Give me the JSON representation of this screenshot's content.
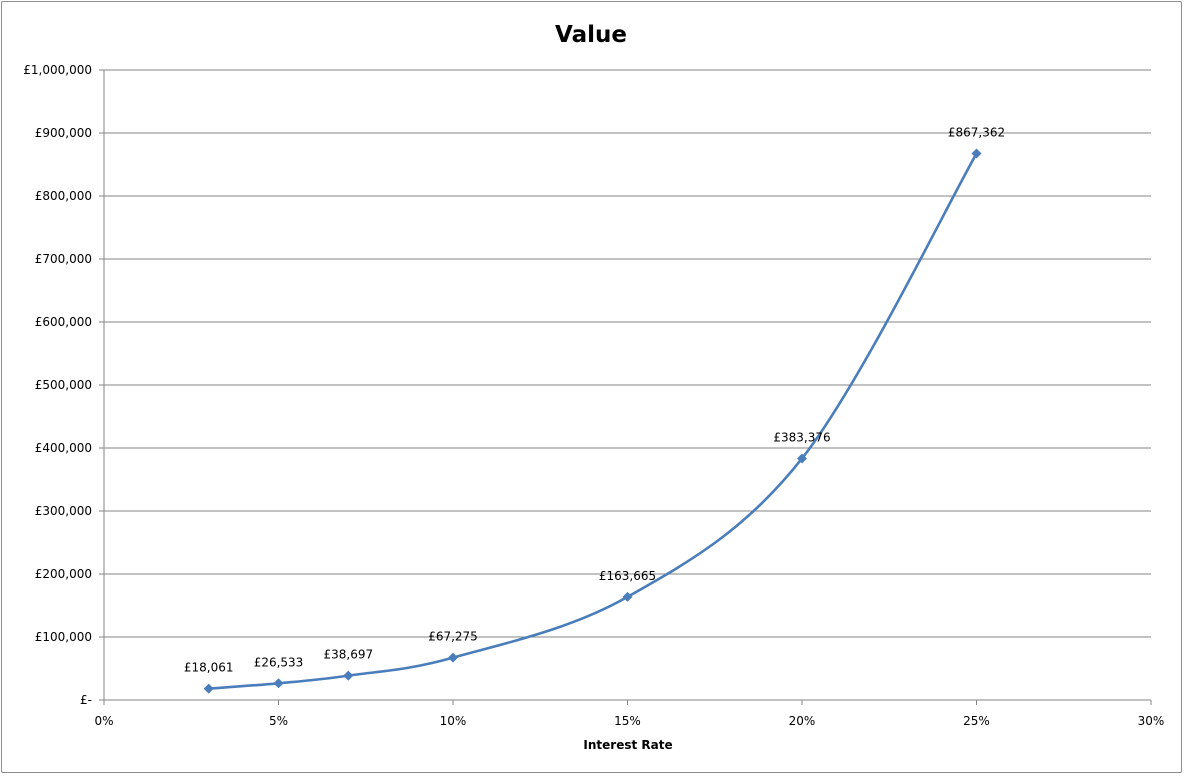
{
  "chart_data": {
    "type": "line",
    "title": "Value",
    "xlabel": "Interest Rate",
    "ylabel": "",
    "x": [
      0.03,
      0.05,
      0.07,
      0.1,
      0.15,
      0.2,
      0.25
    ],
    "series": [
      {
        "values": [
          18061,
          26533,
          38697,
          67275,
          163665,
          383376,
          867362
        ],
        "labels": [
          "£18,061",
          "£26,533",
          "£38,697",
          "£67,275",
          "£163,665",
          "£383,376",
          "£867,362"
        ]
      }
    ],
    "xlim": [
      0,
      0.3
    ],
    "ylim": [
      0,
      1000000
    ],
    "x_ticks": [
      0,
      0.05,
      0.1,
      0.15,
      0.2,
      0.25,
      0.3
    ],
    "x_tick_labels": [
      "0%",
      "5%",
      "10%",
      "15%",
      "20%",
      "25%",
      "30%"
    ],
    "y_ticks": [
      0,
      100000,
      200000,
      300000,
      400000,
      500000,
      600000,
      700000,
      800000,
      900000,
      1000000
    ],
    "y_tick_labels": [
      "£-",
      "£100,000",
      "£200,000",
      "£300,000",
      "£400,000",
      "£500,000",
      "£600,000",
      "£700,000",
      "£800,000",
      "£900,000",
      "£1,000,000"
    ],
    "grid": "horizontal",
    "legend": "none",
    "smooth": true,
    "marker": "diamond",
    "colors": {
      "line": "#4a7ebb",
      "grid": "#868686",
      "axis": "#868686"
    }
  }
}
